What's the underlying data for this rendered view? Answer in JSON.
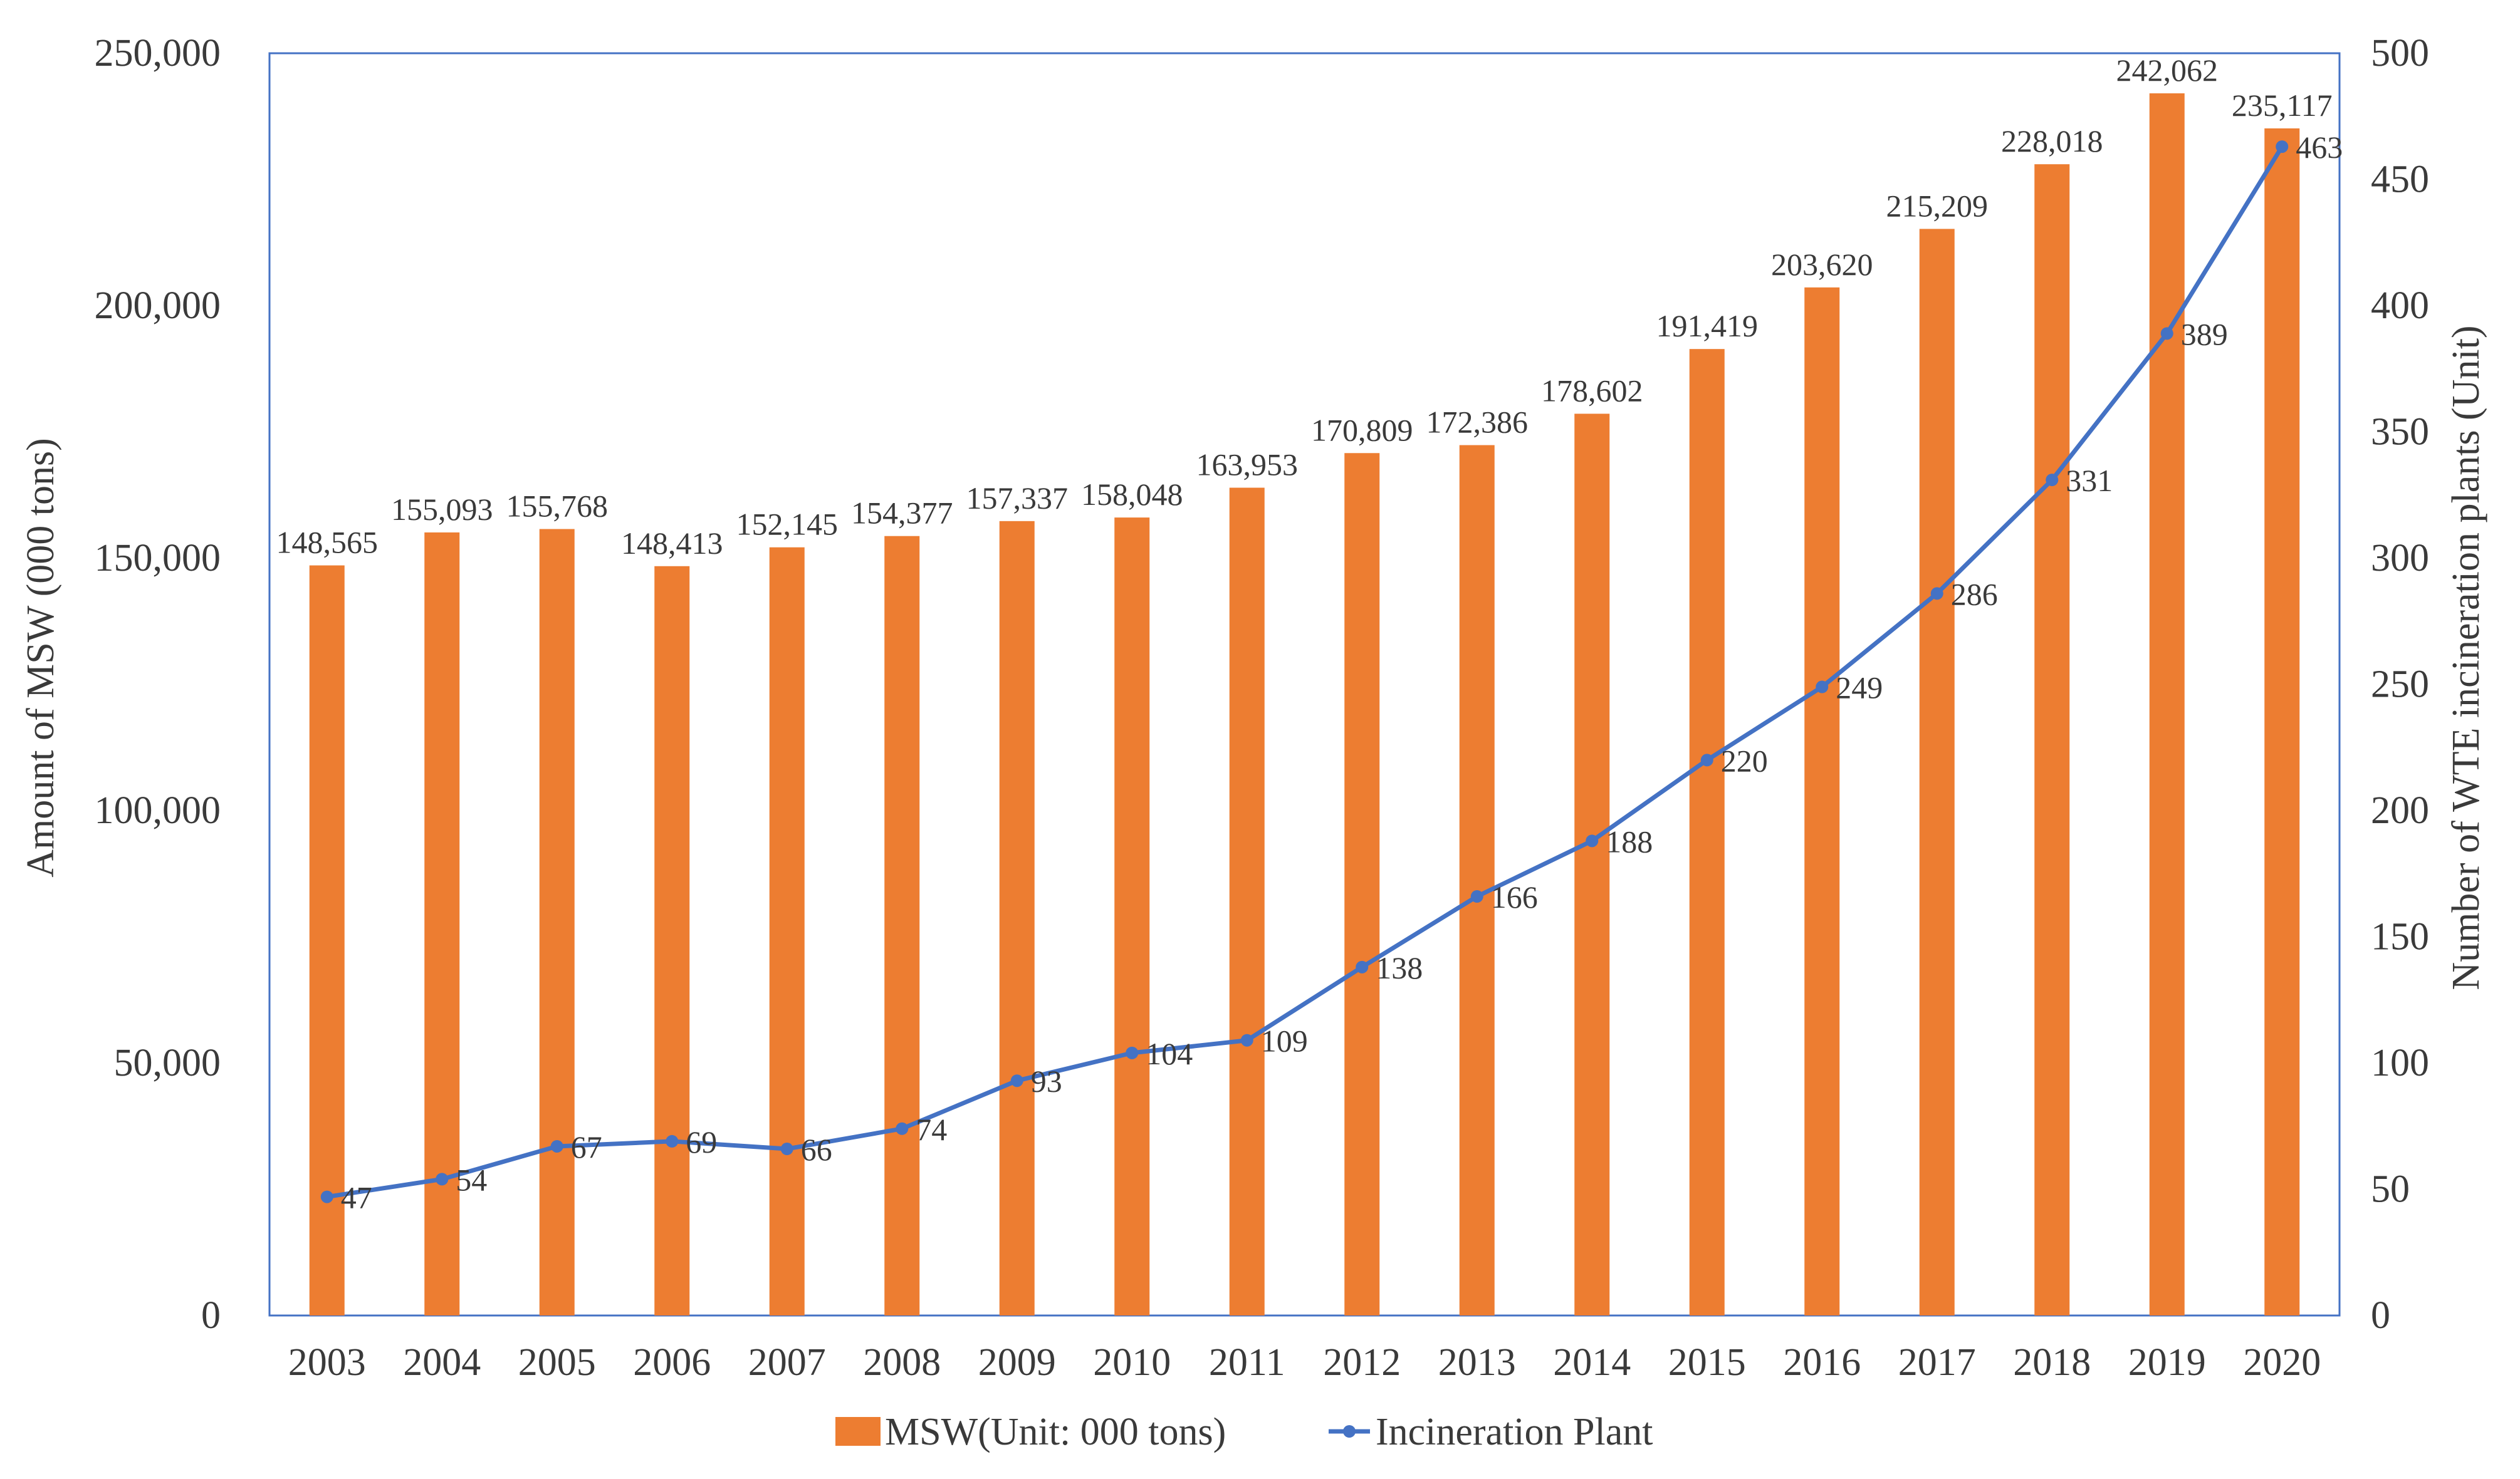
{
  "chart_data": {
    "type": "bar",
    "categories": [
      "2003",
      "2004",
      "2005",
      "2006",
      "2007",
      "2008",
      "2009",
      "2010",
      "2011",
      "2012",
      "2013",
      "2014",
      "2015",
      "2016",
      "2017",
      "2018",
      "2019",
      "2020"
    ],
    "series": [
      {
        "name": "MSW(Unit: 000 tons)",
        "kind": "bar",
        "axis": "left",
        "color": "#ED7D31",
        "values": [
          148565,
          155093,
          155768,
          148413,
          152145,
          154377,
          157337,
          158048,
          163953,
          170809,
          172386,
          178602,
          191419,
          203620,
          215209,
          228018,
          242062,
          235117
        ],
        "labels": [
          "148,565",
          "155,093",
          "155,768",
          "148,413",
          "152,145",
          "154,377",
          "157,337",
          "158,048",
          "163,953",
          "170,809",
          "172,386",
          "178,602",
          "191,419",
          "203,620",
          "215,209",
          "228,018",
          "242,062",
          "235,117"
        ]
      },
      {
        "name": "Incineration Plant",
        "kind": "line",
        "axis": "right",
        "color": "#4472C4",
        "values": [
          47,
          54,
          67,
          69,
          66,
          74,
          93,
          104,
          109,
          138,
          166,
          188,
          220,
          249,
          286,
          331,
          389,
          463
        ],
        "labels": [
          "47",
          "54",
          "67",
          "69",
          "66",
          "74",
          "93",
          "104",
          "109",
          "138",
          "166",
          "188",
          "220",
          "249",
          "286",
          "331",
          "389",
          "463"
        ]
      }
    ],
    "ylabel": "Amount of MSW (000 tons)",
    "y2label": "Number of WTE incineration plants (Unit)",
    "ylim": [
      0,
      250000
    ],
    "y2lim": [
      0,
      500
    ],
    "yticks": [
      "0",
      "50,000",
      "100,000",
      "150,000",
      "200,000",
      "250,000"
    ],
    "y2ticks": [
      "0",
      "50",
      "100",
      "150",
      "200",
      "250",
      "300",
      "350",
      "400",
      "450",
      "500"
    ],
    "legend_position": "bottom",
    "grid": false
  }
}
